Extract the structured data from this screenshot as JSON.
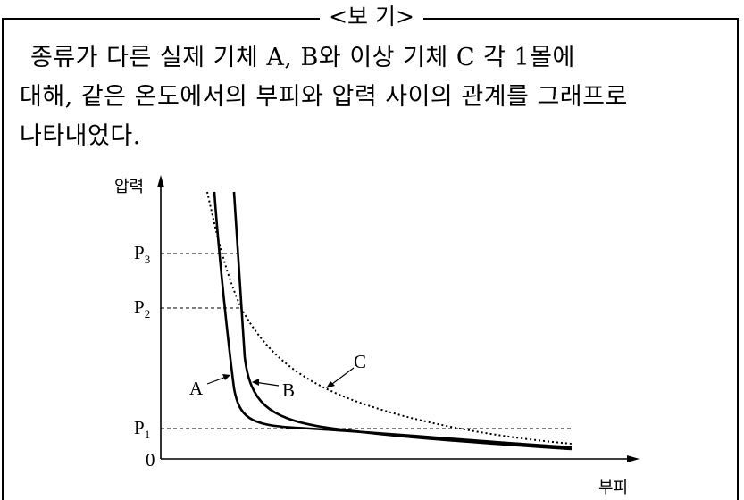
{
  "box": {
    "title": "<보 기>",
    "paragraph": {
      "line1": "종류가 다른 실제 기체 A, B와 이상 기체 C 각 1몰에",
      "line2": "대해, 같은 온도에서의 부피와 압력 사이의 관계를 그래프로",
      "line3": "나타내었다."
    }
  },
  "graph": {
    "y_axis_label": "압력",
    "x_axis_label": "부피",
    "origin_label": "0",
    "ticks": [
      {
        "base": "P",
        "sub": "3"
      },
      {
        "base": "P",
        "sub": "2"
      },
      {
        "base": "P",
        "sub": "1"
      }
    ],
    "curve_labels": {
      "a": "A",
      "b": "B",
      "c": "C"
    },
    "line_color": "#000000"
  }
}
